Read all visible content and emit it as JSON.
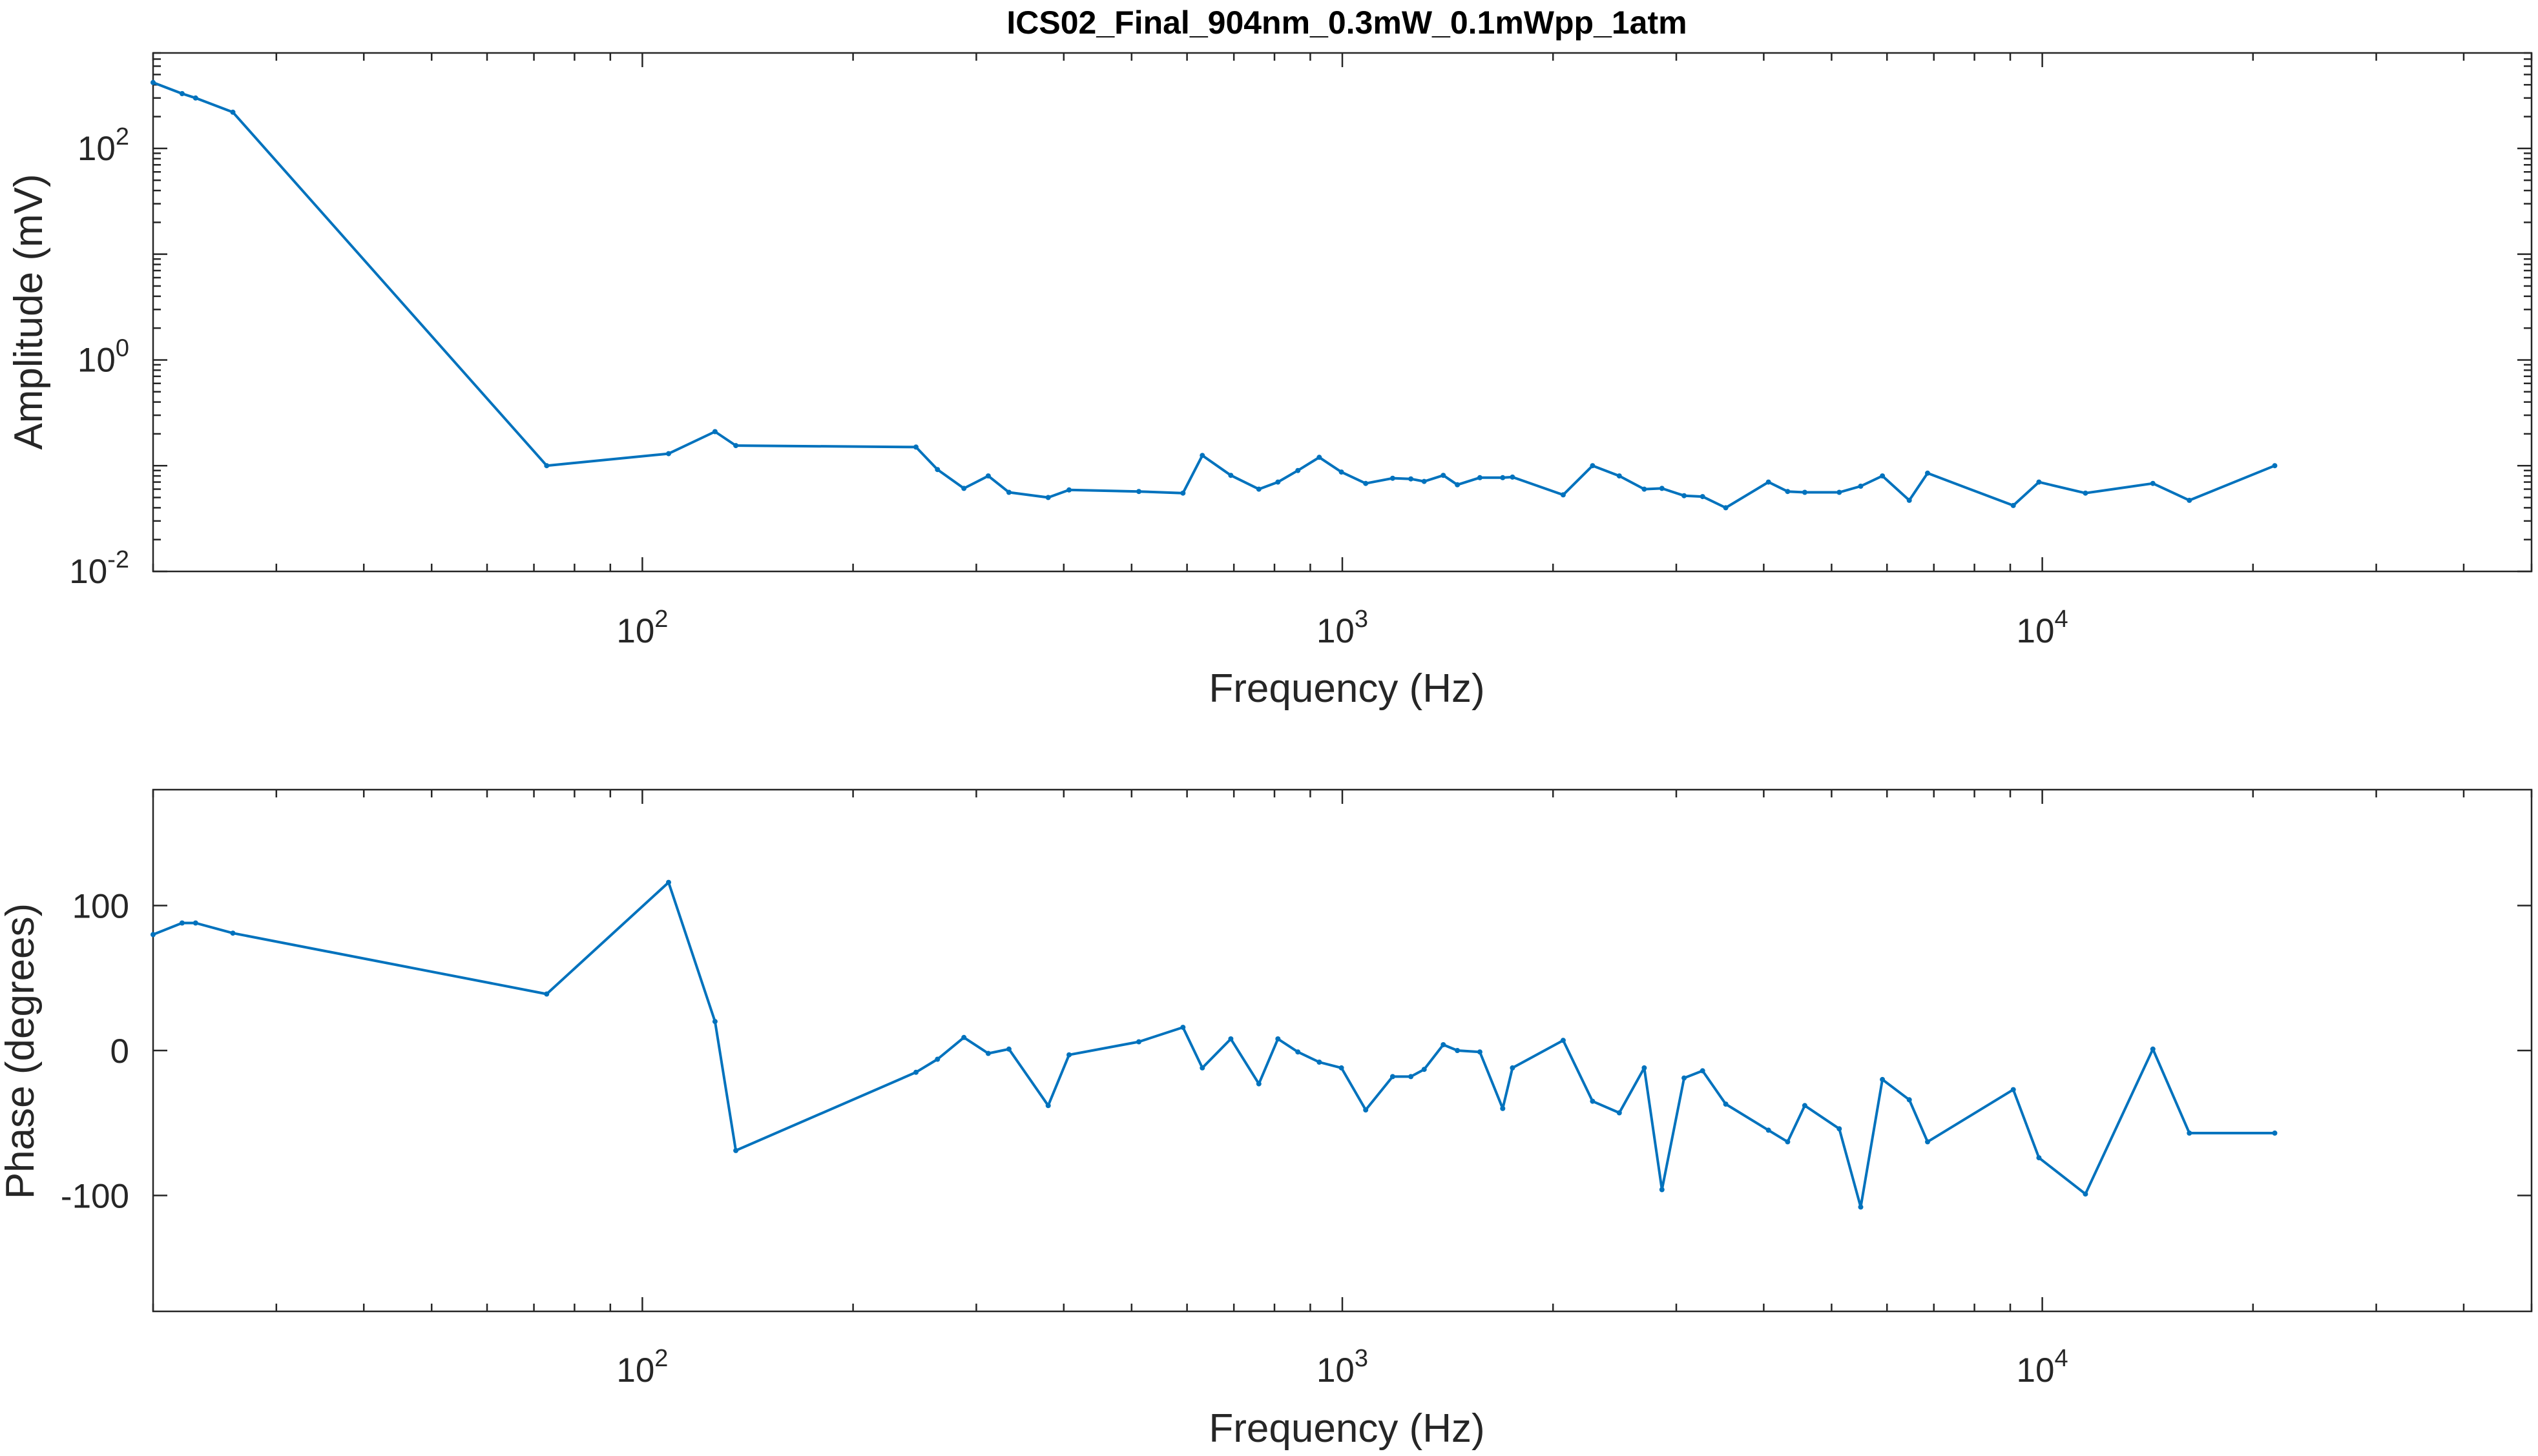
{
  "colors": {
    "series": "#0072BD",
    "axes": "#262626",
    "background": "#ffffff"
  },
  "chart_data": [
    {
      "type": "line",
      "title": "ICS02_Final_904nm_0.3mW_0.1mWpp_1atm",
      "xlabel": "Frequency (Hz)",
      "ylabel": "Amplitude (mV)",
      "xscale": "log",
      "yscale": "log",
      "xlim": [
        20,
        50000
      ],
      "ylim": [
        0.01,
        800
      ],
      "grid": false,
      "xtick_labels": [
        {
          "base": "10",
          "exp": "2"
        },
        {
          "base": "10",
          "exp": "3"
        },
        {
          "base": "10",
          "exp": "4"
        }
      ],
      "ytick_labels": [
        {
          "base": "10",
          "exp": "-2"
        },
        {
          "base": "10",
          "exp": "0"
        },
        {
          "base": "10",
          "exp": "2"
        }
      ],
      "x": [
        20,
        22,
        23,
        26,
        73,
        109,
        127,
        136,
        246,
        264,
        288,
        312,
        334,
        380,
        407,
        512,
        592,
        631,
        693,
        760,
        809,
        864,
        927,
        997,
        1080,
        1180,
        1253,
        1309,
        1394,
        1460,
        1572,
        1695,
        1750,
        2068,
        2278,
        2487,
        2700,
        2862,
        3078,
        3271,
        3530,
        4063,
        4327,
        4578,
        5128,
        5503,
        5910,
        6457,
        6857,
        9091,
        9891,
        11524,
        14387,
        16224,
        21484
      ],
      "y": [
        420,
        330,
        300,
        220,
        0.1,
        0.13,
        0.21,
        0.155,
        0.15,
        0.092,
        0.061,
        0.08,
        0.056,
        0.05,
        0.059,
        0.057,
        0.055,
        0.125,
        0.081,
        0.06,
        0.07,
        0.09,
        0.12,
        0.087,
        0.068,
        0.076,
        0.075,
        0.071,
        0.081,
        0.066,
        0.077,
        0.077,
        0.078,
        0.053,
        0.1,
        0.08,
        0.06,
        0.061,
        0.052,
        0.051,
        0.04,
        0.07,
        0.057,
        0.056,
        0.056,
        0.064,
        0.08,
        0.047,
        0.085,
        0.042,
        0.07,
        0.055,
        0.068,
        0.047,
        0.1
      ]
    },
    {
      "type": "line",
      "title": "",
      "xlabel": "Frequency (Hz)",
      "ylabel": "Phase (degrees)",
      "xscale": "log",
      "yscale": "linear",
      "xlim": [
        20,
        50000
      ],
      "ylim": [
        -180,
        180
      ],
      "grid": false,
      "xtick_labels": [
        {
          "base": "10",
          "exp": "2"
        },
        {
          "base": "10",
          "exp": "3"
        },
        {
          "base": "10",
          "exp": "4"
        }
      ],
      "ytick_labels": [
        "100",
        "0",
        "-100"
      ],
      "yticks": [
        100,
        0,
        -100
      ],
      "x": [
        20,
        22,
        23,
        26,
        73,
        109,
        127,
        136,
        246,
        264,
        288,
        312,
        334,
        380,
        407,
        512,
        592,
        631,
        693,
        760,
        809,
        864,
        927,
        997,
        1080,
        1180,
        1253,
        1309,
        1394,
        1460,
        1572,
        1695,
        1750,
        2068,
        2278,
        2487,
        2700,
        2862,
        3078,
        3271,
        3530,
        4063,
        4327,
        4578,
        5128,
        5503,
        5910,
        6457,
        6857,
        9091,
        9891,
        11524,
        14387,
        16224,
        21484
      ],
      "y": [
        80,
        88,
        88,
        81,
        39,
        116,
        20,
        -69,
        -15,
        -6,
        9,
        -2,
        1,
        -38,
        -3,
        6,
        16,
        -12,
        8,
        -23,
        8,
        -1,
        -8,
        -12,
        -41,
        -18,
        -18,
        -13,
        4,
        0,
        -1,
        -40,
        -12,
        7,
        -35,
        -43,
        -12,
        -96,
        -19,
        -14,
        -37,
        -55,
        -63,
        -38,
        -54,
        -108,
        -20,
        -34,
        -63,
        -27,
        -74,
        -99,
        1,
        -57,
        -57
      ]
    }
  ]
}
